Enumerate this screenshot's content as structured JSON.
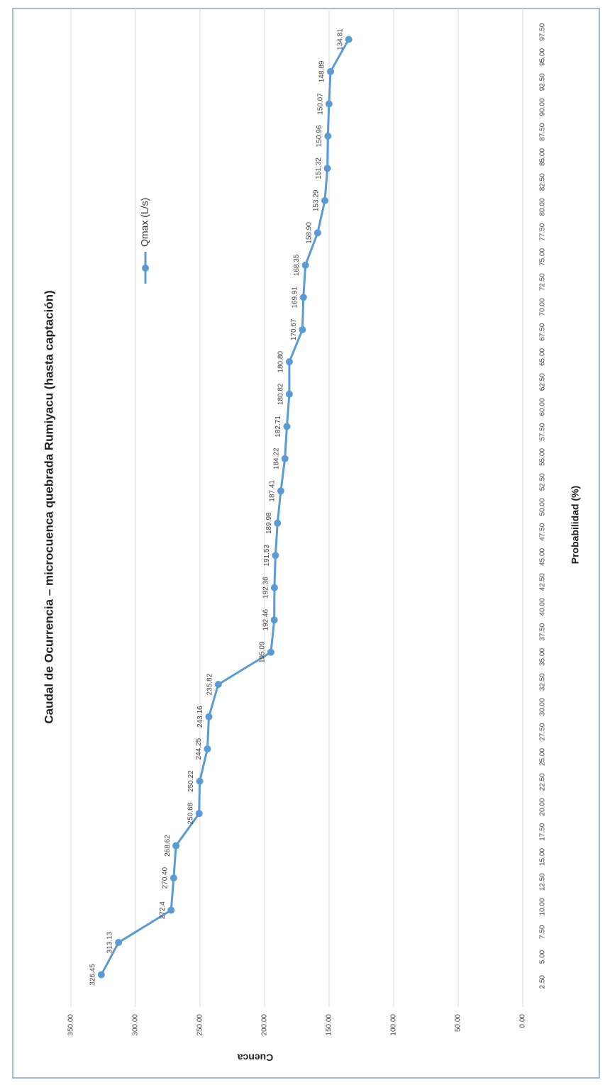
{
  "chart_data": {
    "type": "line",
    "title": "Caudal de Ocurrencia – microcuenca quebrada Rumiyacu (hasta captación)",
    "x_label": "Probabilidad (%)",
    "y_label": "Cuenca",
    "x": [
      3.23,
      6.45,
      9.68,
      12.9,
      16.13,
      19.35,
      22.58,
      25.81,
      29.03,
      32.26,
      35.48,
      38.71,
      41.94,
      45.16,
      48.39,
      51.61,
      54.84,
      58.06,
      61.29,
      64.52,
      67.74,
      70.97,
      74.19,
      77.42,
      80.65,
      83.87,
      87.1,
      90.32,
      93.55,
      96.77
    ],
    "series": [
      {
        "name": "Qmax (L/s)",
        "color": "#5b9bd5",
        "values": [
          326.45,
          313.13,
          272.4,
          270.4,
          268.62,
          250.68,
          250.22,
          244.25,
          243.16,
          235.82,
          195.09,
          192.46,
          192.36,
          191.53,
          189.98,
          187.41,
          184.22,
          182.71,
          180.82,
          180.8,
          170.67,
          169.91,
          168.35,
          158.9,
          153.29,
          151.32,
          150.96,
          150.07,
          148.89,
          134.81
        ],
        "value_labels": [
          "326.45",
          "313.13",
          "272.4",
          "270.40",
          "268.62",
          "250.68",
          "250.22",
          "244.25",
          "243.16",
          "235.82",
          "195.09",
          "192.46",
          "192.36",
          "191.53",
          "189.98",
          "187.41",
          "184.22",
          "182.71",
          "180.82",
          "180.80",
          "170.67",
          "169.91",
          "168.35",
          "158.90",
          "153.29",
          "151.32",
          "150.96",
          "150.07",
          "148.89",
          "134.81"
        ]
      }
    ],
    "xlim": [
      0,
      100
    ],
    "xticks": [
      {
        "value": 2.5,
        "label": "2.50"
      },
      {
        "value": 5,
        "label": "5.00"
      },
      {
        "value": 7.5,
        "label": "7.50"
      },
      {
        "value": 10,
        "label": "10.00"
      },
      {
        "value": 12.5,
        "label": "12.50"
      },
      {
        "value": 15,
        "label": "15.00"
      },
      {
        "value": 17.5,
        "label": "17.50"
      },
      {
        "value": 20,
        "label": "20.00"
      },
      {
        "value": 22.5,
        "label": "22.50"
      },
      {
        "value": 25,
        "label": "25.00"
      },
      {
        "value": 27.5,
        "label": "27.50"
      },
      {
        "value": 30,
        "label": "30.00"
      },
      {
        "value": 32.5,
        "label": "32.50"
      },
      {
        "value": 35,
        "label": "35.00"
      },
      {
        "value": 37.5,
        "label": "37.50"
      },
      {
        "value": 40,
        "label": "40.00"
      },
      {
        "value": 42.5,
        "label": "42.50"
      },
      {
        "value": 45,
        "label": "45.00"
      },
      {
        "value": 47.5,
        "label": "47.50"
      },
      {
        "value": 50,
        "label": "50.00"
      },
      {
        "value": 52.5,
        "label": "52.50"
      },
      {
        "value": 55,
        "label": "55.00"
      },
      {
        "value": 57.5,
        "label": "57.50"
      },
      {
        "value": 60,
        "label": "60.00"
      },
      {
        "value": 62.5,
        "label": "62.50"
      },
      {
        "value": 65,
        "label": "65.00"
      },
      {
        "value": 67.5,
        "label": "67.50"
      },
      {
        "value": 70,
        "label": "70.00"
      },
      {
        "value": 72.5,
        "label": "72.50"
      },
      {
        "value": 75,
        "label": "75.00"
      },
      {
        "value": 77.5,
        "label": "77.50"
      },
      {
        "value": 80,
        "label": "80.00"
      },
      {
        "value": 82.5,
        "label": "82.50"
      },
      {
        "value": 85,
        "label": "85.00"
      },
      {
        "value": 87.5,
        "label": "87.50"
      },
      {
        "value": 90,
        "label": "90.00"
      },
      {
        "value": 92.5,
        "label": "92.50"
      },
      {
        "value": 95,
        "label": "95.00"
      },
      {
        "value": 97.5,
        "label": "97.50"
      }
    ],
    "ylim": [
      0,
      350
    ],
    "yticks": [
      {
        "value": 0,
        "label": "0.00"
      },
      {
        "value": 50,
        "label": "50.00"
      },
      {
        "value": 100,
        "label": "100.00"
      },
      {
        "value": 150,
        "label": "150.00"
      },
      {
        "value": 200,
        "label": "200.00"
      },
      {
        "value": 250,
        "label": "250.00"
      },
      {
        "value": 300,
        "label": "300.00"
      },
      {
        "value": 350,
        "label": "350.00"
      }
    ],
    "grid": true,
    "legend": "top"
  }
}
